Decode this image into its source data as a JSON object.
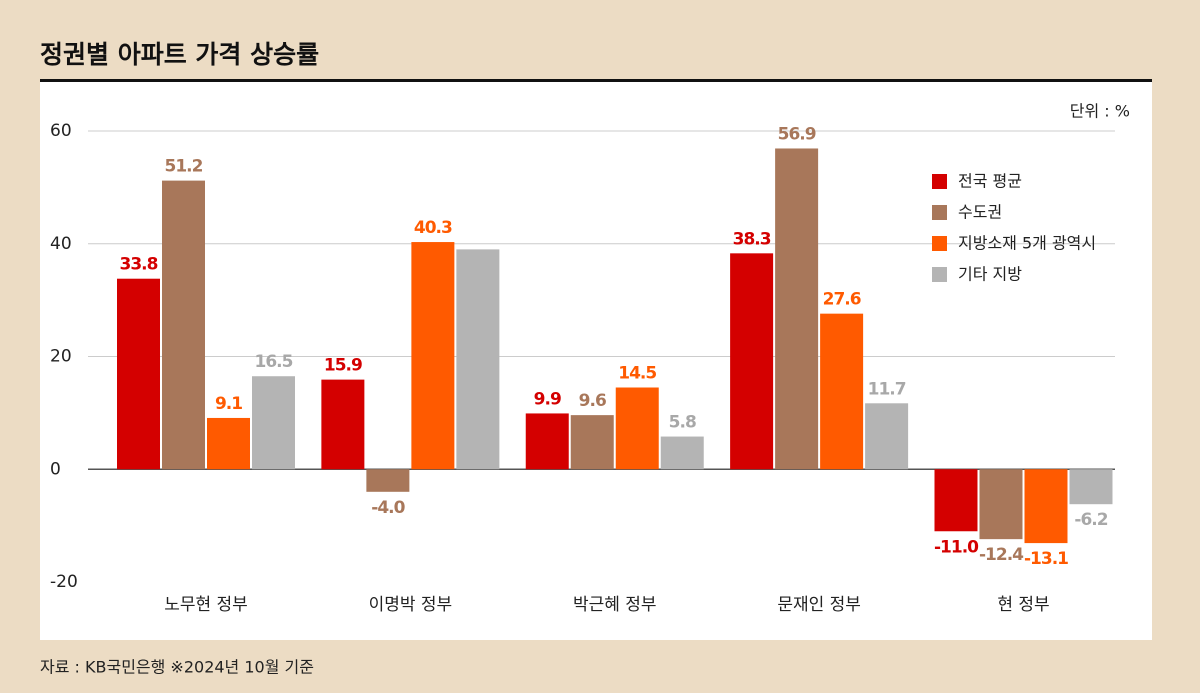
{
  "chart_data": {
    "type": "bar",
    "title": "정권별 아파트 가격 상승률",
    "unit_label": "단위 : %",
    "source": "자료 : KB국민은행 ※2024년 10월 기준",
    "categories": [
      "노무현 정부",
      "이명박 정부",
      "박근혜 정부",
      "문재인 정부",
      "현 정부"
    ],
    "series": [
      {
        "name": "전국 평균",
        "color": "#d40000",
        "values": [
          33.8,
          15.9,
          9.9,
          38.3,
          -11.0
        ],
        "value_labels": [
          "33.8",
          "15.9",
          "9.9",
          "38.3",
          "-11.0"
        ]
      },
      {
        "name": "수도권",
        "color": "#a8775a",
        "values": [
          51.2,
          -4.0,
          9.6,
          56.9,
          -12.4
        ],
        "value_labels": [
          "51.2",
          "-4.0",
          "9.6",
          "56.9",
          "-12.4"
        ]
      },
      {
        "name": "지방소재 5개 광역시",
        "color": "#ff5a00",
        "values": [
          9.1,
          40.3,
          14.5,
          27.6,
          -13.1
        ],
        "value_labels": [
          "9.1",
          "40.3",
          "14.5",
          "27.6",
          "-13.1"
        ]
      },
      {
        "name": "기타 지방",
        "color": "#b4b4b4",
        "values": [
          16.5,
          39.0,
          5.8,
          11.7,
          -6.2
        ],
        "value_labels": [
          "16.5",
          null,
          "5.8",
          "11.7",
          "-6.2"
        ]
      }
    ],
    "ylim": [
      -20,
      60
    ],
    "yticks": [
      -20,
      0,
      20,
      40,
      60
    ],
    "grid": true,
    "legend": "upper right"
  }
}
